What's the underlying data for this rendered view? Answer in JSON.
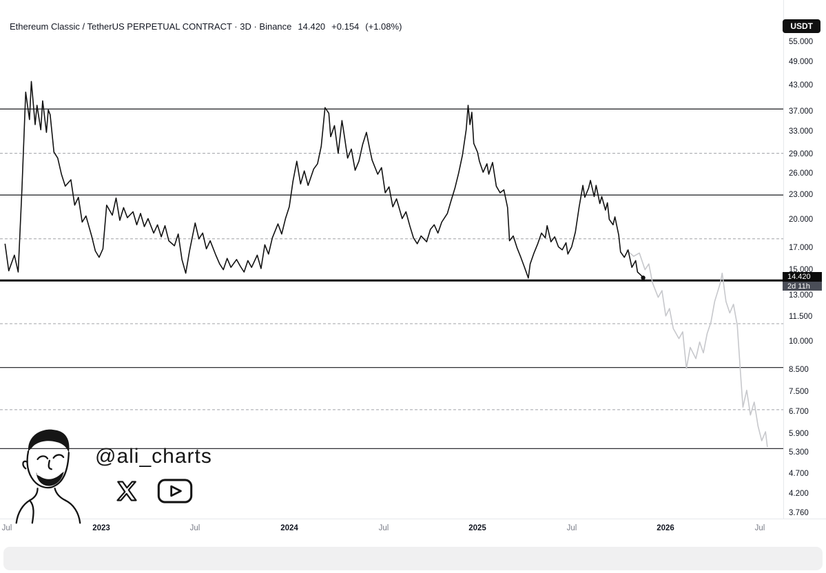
{
  "header": {
    "title": "Ethereum Classic / TetherUS PERPETUAL CONTRACT · 3D · Binance",
    "price": "14.420",
    "change": "+0.154",
    "change_pct": "(+1.08%)"
  },
  "badges": {
    "currency": "USDT"
  },
  "price_label": {
    "price": "14.420",
    "countdown": "2d 11h"
  },
  "watermark": {
    "handle": "@ali_charts",
    "icons": [
      "x-icon",
      "youtube-icon"
    ]
  },
  "colors": {
    "price_line": "#121212",
    "forecast_line": "#c7c8cc",
    "level_solid": "#2e2f33",
    "level_dashed": "#9fa0a6",
    "badge_bg": "#0b0b0b",
    "countdown_bg": "#4a4d57"
  },
  "chart_data": {
    "type": "line",
    "title": "Ethereum Classic / TetherUS PERPETUAL CONTRACT · 3D · Binance",
    "yscale": "log",
    "ylim": [
      3.76,
      55
    ],
    "xlim": [
      2022.49,
      2026.56
    ],
    "legend_position": "none",
    "grid": "horizontal-levels-only",
    "y_ticks": [
      {
        "price": 55,
        "label": "55.000"
      },
      {
        "price": 49,
        "label": "49.000"
      },
      {
        "price": 43,
        "label": "43.000"
      },
      {
        "price": 37,
        "label": "37.000"
      },
      {
        "price": 33,
        "label": "33.000"
      },
      {
        "price": 29,
        "label": "29.000"
      },
      {
        "price": 26,
        "label": "26.000"
      },
      {
        "price": 23,
        "label": "23.000"
      },
      {
        "price": 20,
        "label": "20.000"
      },
      {
        "price": 17,
        "label": "17.000"
      },
      {
        "price": 15,
        "label": "15.000"
      },
      {
        "price": 13,
        "label": "13.000"
      },
      {
        "price": 11.5,
        "label": "11.500"
      },
      {
        "price": 10,
        "label": "10.000"
      },
      {
        "price": 8.5,
        "label": "8.500"
      },
      {
        "price": 7.5,
        "label": "7.500"
      },
      {
        "price": 6.7,
        "label": "6.700"
      },
      {
        "price": 5.9,
        "label": "5.900"
      },
      {
        "price": 5.3,
        "label": "5.300"
      },
      {
        "price": 4.7,
        "label": "4.700"
      },
      {
        "price": 4.2,
        "label": "4.200"
      },
      {
        "price": 3.76,
        "label": "3.760"
      }
    ],
    "x_ticks": [
      {
        "t": 2022.5,
        "label": "Jul",
        "type": "month"
      },
      {
        "t": 2023.0,
        "label": "2023",
        "type": "year"
      },
      {
        "t": 2023.5,
        "label": "Jul",
        "type": "month"
      },
      {
        "t": 2024.0,
        "label": "2024",
        "type": "year"
      },
      {
        "t": 2024.5,
        "label": "Jul",
        "type": "month"
      },
      {
        "t": 2025.0,
        "label": "2025",
        "type": "year"
      },
      {
        "t": 2025.5,
        "label": "Jul",
        "type": "month"
      },
      {
        "t": 2026.0,
        "label": "2026",
        "type": "year"
      },
      {
        "t": 2026.5,
        "label": "Jul",
        "type": "month"
      }
    ],
    "levels_solid": [
      37.7,
      23.1,
      8.65,
      5.45
    ],
    "level_thick": 14.2,
    "levels_dashed": [
      29.3,
      18.0,
      11.1,
      6.8
    ],
    "series": [
      {
        "name": "ETCUSDT price",
        "role": "price",
        "points": [
          [
            2022.49,
            17.5
          ],
          [
            2022.51,
            15.0
          ],
          [
            2022.54,
            16.4
          ],
          [
            2022.56,
            14.9
          ],
          [
            2022.58,
            24.0
          ],
          [
            2022.6,
            41.5
          ],
          [
            2022.62,
            35.5
          ],
          [
            2022.63,
            44.1
          ],
          [
            2022.65,
            34.5
          ],
          [
            2022.66,
            38.5
          ],
          [
            2022.68,
            33.5
          ],
          [
            2022.69,
            39.5
          ],
          [
            2022.71,
            33.0
          ],
          [
            2022.72,
            37.5
          ],
          [
            2022.73,
            36.5
          ],
          [
            2022.75,
            29.5
          ],
          [
            2022.77,
            28.5
          ],
          [
            2022.79,
            26.0
          ],
          [
            2022.81,
            24.3
          ],
          [
            2022.84,
            25.2
          ],
          [
            2022.86,
            21.8
          ],
          [
            2022.88,
            22.8
          ],
          [
            2022.9,
            19.8
          ],
          [
            2022.92,
            20.5
          ],
          [
            2022.95,
            18.3
          ],
          [
            2022.97,
            16.8
          ],
          [
            2022.99,
            16.2
          ],
          [
            2023.01,
            17.0
          ],
          [
            2023.03,
            21.8
          ],
          [
            2023.06,
            20.6
          ],
          [
            2023.08,
            22.7
          ],
          [
            2023.1,
            20.0
          ],
          [
            2023.12,
            21.5
          ],
          [
            2023.14,
            20.3
          ],
          [
            2023.17,
            21.0
          ],
          [
            2023.19,
            19.5
          ],
          [
            2023.21,
            20.8
          ],
          [
            2023.23,
            19.3
          ],
          [
            2023.25,
            20.2
          ],
          [
            2023.28,
            18.6
          ],
          [
            2023.3,
            19.5
          ],
          [
            2023.32,
            18.2
          ],
          [
            2023.34,
            19.4
          ],
          [
            2023.36,
            17.8
          ],
          [
            2023.39,
            17.3
          ],
          [
            2023.41,
            18.5
          ],
          [
            2023.43,
            16.0
          ],
          [
            2023.45,
            14.8
          ],
          [
            2023.47,
            16.8
          ],
          [
            2023.5,
            19.7
          ],
          [
            2023.52,
            18.0
          ],
          [
            2023.54,
            18.6
          ],
          [
            2023.56,
            17.0
          ],
          [
            2023.58,
            17.8
          ],
          [
            2023.61,
            16.4
          ],
          [
            2023.63,
            15.6
          ],
          [
            2023.65,
            15.1
          ],
          [
            2023.67,
            16.1
          ],
          [
            2023.69,
            15.3
          ],
          [
            2023.72,
            16.0
          ],
          [
            2023.74,
            15.4
          ],
          [
            2023.76,
            14.9
          ],
          [
            2023.78,
            15.9
          ],
          [
            2023.8,
            15.3
          ],
          [
            2023.83,
            16.4
          ],
          [
            2023.85,
            15.2
          ],
          [
            2023.87,
            17.4
          ],
          [
            2023.89,
            16.5
          ],
          [
            2023.91,
            18.1
          ],
          [
            2023.94,
            19.6
          ],
          [
            2023.96,
            18.5
          ],
          [
            2023.98,
            20.2
          ],
          [
            2024.0,
            21.6
          ],
          [
            2024.02,
            25.0
          ],
          [
            2024.04,
            28.0
          ],
          [
            2024.06,
            24.6
          ],
          [
            2024.08,
            26.5
          ],
          [
            2024.1,
            24.4
          ],
          [
            2024.13,
            26.8
          ],
          [
            2024.15,
            27.6
          ],
          [
            2024.17,
            30.5
          ],
          [
            2024.19,
            38.0
          ],
          [
            2024.21,
            36.8
          ],
          [
            2024.22,
            32.2
          ],
          [
            2024.24,
            34.3
          ],
          [
            2024.26,
            29.3
          ],
          [
            2024.28,
            35.3
          ],
          [
            2024.29,
            33.0
          ],
          [
            2024.31,
            28.5
          ],
          [
            2024.33,
            30.0
          ],
          [
            2024.35,
            26.6
          ],
          [
            2024.37,
            28.0
          ],
          [
            2024.39,
            30.8
          ],
          [
            2024.41,
            33.0
          ],
          [
            2024.43,
            29.6
          ],
          [
            2024.44,
            28.2
          ],
          [
            2024.47,
            26.0
          ],
          [
            2024.49,
            27.0
          ],
          [
            2024.51,
            23.4
          ],
          [
            2024.53,
            24.2
          ],
          [
            2024.55,
            21.6
          ],
          [
            2024.57,
            22.6
          ],
          [
            2024.6,
            20.2
          ],
          [
            2024.62,
            21.0
          ],
          [
            2024.64,
            19.4
          ],
          [
            2024.66,
            18.1
          ],
          [
            2024.68,
            17.5
          ],
          [
            2024.7,
            18.3
          ],
          [
            2024.73,
            17.7
          ],
          [
            2024.75,
            19.0
          ],
          [
            2024.77,
            19.5
          ],
          [
            2024.79,
            18.6
          ],
          [
            2024.81,
            19.8
          ],
          [
            2024.84,
            20.8
          ],
          [
            2024.86,
            22.4
          ],
          [
            2024.88,
            24.0
          ],
          [
            2024.9,
            26.2
          ],
          [
            2024.92,
            29.0
          ],
          [
            2024.94,
            33.5
          ],
          [
            2024.95,
            38.5
          ],
          [
            2024.96,
            34.5
          ],
          [
            2024.97,
            37.0
          ],
          [
            2024.98,
            31.0
          ],
          [
            2025.0,
            29.5
          ],
          [
            2025.01,
            28.0
          ],
          [
            2025.03,
            26.3
          ],
          [
            2025.05,
            27.6
          ],
          [
            2025.06,
            26.0
          ],
          [
            2025.08,
            27.8
          ],
          [
            2025.1,
            24.3
          ],
          [
            2025.12,
            23.4
          ],
          [
            2025.14,
            23.8
          ],
          [
            2025.16,
            21.5
          ],
          [
            2025.17,
            17.8
          ],
          [
            2025.19,
            18.3
          ],
          [
            2025.21,
            17.1
          ],
          [
            2025.23,
            16.2
          ],
          [
            2025.25,
            15.3
          ],
          [
            2025.27,
            14.4
          ],
          [
            2025.28,
            15.6
          ],
          [
            2025.3,
            16.6
          ],
          [
            2025.32,
            17.5
          ],
          [
            2025.34,
            18.6
          ],
          [
            2025.36,
            18.1
          ],
          [
            2025.37,
            19.4
          ],
          [
            2025.39,
            17.7
          ],
          [
            2025.41,
            18.2
          ],
          [
            2025.43,
            17.2
          ],
          [
            2025.45,
            16.9
          ],
          [
            2025.47,
            17.6
          ],
          [
            2025.48,
            16.5
          ],
          [
            2025.5,
            17.2
          ],
          [
            2025.52,
            18.7
          ],
          [
            2025.54,
            21.6
          ],
          [
            2025.56,
            24.4
          ],
          [
            2025.57,
            22.8
          ],
          [
            2025.59,
            24.0
          ],
          [
            2025.6,
            25.1
          ],
          [
            2025.62,
            22.9
          ],
          [
            2025.63,
            24.4
          ],
          [
            2025.65,
            22.0
          ],
          [
            2025.66,
            22.9
          ],
          [
            2025.68,
            21.2
          ],
          [
            2025.69,
            22.1
          ],
          [
            2025.7,
            20.1
          ],
          [
            2025.72,
            19.5
          ],
          [
            2025.73,
            20.4
          ],
          [
            2025.75,
            18.4
          ],
          [
            2025.76,
            16.7
          ],
          [
            2025.78,
            16.2
          ],
          [
            2025.8,
            16.9
          ],
          [
            2025.82,
            15.3
          ],
          [
            2025.84,
            15.9
          ],
          [
            2025.85,
            14.9
          ],
          [
            2025.87,
            14.6
          ],
          [
            2025.88,
            14.42
          ]
        ]
      },
      {
        "name": "projected path",
        "role": "forecast",
        "points": [
          [
            2025.79,
            16.9
          ],
          [
            2025.83,
            16.3
          ],
          [
            2025.86,
            16.6
          ],
          [
            2025.89,
            15.1
          ],
          [
            2025.91,
            15.6
          ],
          [
            2025.93,
            14.0
          ],
          [
            2025.96,
            12.9
          ],
          [
            2025.98,
            13.4
          ],
          [
            2026.0,
            11.6
          ],
          [
            2026.02,
            12.1
          ],
          [
            2026.04,
            10.8
          ],
          [
            2026.07,
            10.2
          ],
          [
            2026.09,
            10.6
          ],
          [
            2026.11,
            8.6
          ],
          [
            2026.13,
            9.7
          ],
          [
            2026.16,
            9.1
          ],
          [
            2026.18,
            10.0
          ],
          [
            2026.2,
            9.4
          ],
          [
            2026.22,
            10.5
          ],
          [
            2026.24,
            11.2
          ],
          [
            2026.26,
            12.6
          ],
          [
            2026.29,
            14.0
          ],
          [
            2026.3,
            14.8
          ],
          [
            2026.32,
            12.6
          ],
          [
            2026.34,
            11.8
          ],
          [
            2026.36,
            12.4
          ],
          [
            2026.38,
            11.0
          ],
          [
            2026.4,
            8.0
          ],
          [
            2026.41,
            6.9
          ],
          [
            2026.43,
            7.6
          ],
          [
            2026.45,
            6.6
          ],
          [
            2026.47,
            7.1
          ],
          [
            2026.49,
            6.2
          ],
          [
            2026.51,
            5.7
          ],
          [
            2026.53,
            6.0
          ],
          [
            2026.54,
            5.5
          ]
        ]
      }
    ],
    "last_point": [
      2025.88,
      14.42
    ]
  }
}
